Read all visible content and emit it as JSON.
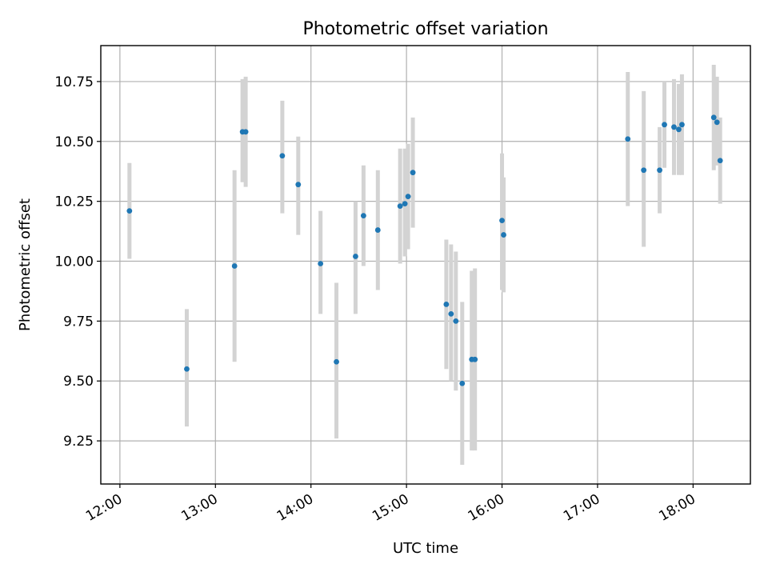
{
  "chart_data": {
    "type": "scatter",
    "title": "Photometric offset variation",
    "xlabel": "UTC time",
    "ylabel": "Photometric offset",
    "xlim": [
      "11:48",
      "18:36"
    ],
    "ylim": [
      9.07,
      10.9
    ],
    "grid": true,
    "x_ticks": [
      "12:00",
      "13:00",
      "14:00",
      "15:00",
      "16:00",
      "17:00",
      "18:00"
    ],
    "y_ticks": [
      "9.25",
      "9.50",
      "9.75",
      "10.00",
      "10.25",
      "10.50",
      "10.75"
    ],
    "colors": {
      "point": "#1f77b4",
      "errorbar": "#d3d3d3",
      "grid": "#b0b0b0"
    },
    "series": [
      {
        "points": [
          {
            "x": "12:06",
            "y": 10.21,
            "ylow": 10.01,
            "yhigh": 10.41
          },
          {
            "x": "12:42",
            "y": 9.55,
            "ylow": 9.31,
            "yhigh": 9.8
          },
          {
            "x": "13:12",
            "y": 9.98,
            "ylow": 9.58,
            "yhigh": 10.38
          },
          {
            "x": "13:17",
            "y": 10.54,
            "ylow": 10.33,
            "yhigh": 10.76
          },
          {
            "x": "13:19",
            "y": 10.54,
            "ylow": 10.31,
            "yhigh": 10.77
          },
          {
            "x": "13:42",
            "y": 10.44,
            "ylow": 10.2,
            "yhigh": 10.67
          },
          {
            "x": "13:52",
            "y": 10.32,
            "ylow": 10.11,
            "yhigh": 10.52
          },
          {
            "x": "14:06",
            "y": 9.99,
            "ylow": 9.78,
            "yhigh": 10.21
          },
          {
            "x": "14:16",
            "y": 9.58,
            "ylow": 9.26,
            "yhigh": 9.91
          },
          {
            "x": "14:28",
            "y": 10.02,
            "ylow": 9.78,
            "yhigh": 10.25
          },
          {
            "x": "14:33",
            "y": 10.19,
            "ylow": 9.98,
            "yhigh": 10.4
          },
          {
            "x": "14:42",
            "y": 10.13,
            "ylow": 9.88,
            "yhigh": 10.38
          },
          {
            "x": "14:56",
            "y": 10.23,
            "ylow": 9.99,
            "yhigh": 10.47
          },
          {
            "x": "14:59",
            "y": 10.24,
            "ylow": 10.02,
            "yhigh": 10.47
          },
          {
            "x": "15:01",
            "y": 10.27,
            "ylow": 10.05,
            "yhigh": 10.49
          },
          {
            "x": "15:04",
            "y": 10.37,
            "ylow": 10.14,
            "yhigh": 10.6
          },
          {
            "x": "15:25",
            "y": 9.82,
            "ylow": 9.55,
            "yhigh": 10.09
          },
          {
            "x": "15:28",
            "y": 9.78,
            "ylow": 9.5,
            "yhigh": 10.07
          },
          {
            "x": "15:31",
            "y": 9.75,
            "ylow": 9.46,
            "yhigh": 10.04
          },
          {
            "x": "15:35",
            "y": 9.49,
            "ylow": 9.15,
            "yhigh": 9.83
          },
          {
            "x": "15:41",
            "y": 9.59,
            "ylow": 9.21,
            "yhigh": 9.96
          },
          {
            "x": "15:43",
            "y": 9.59,
            "ylow": 9.21,
            "yhigh": 9.97
          },
          {
            "x": "16:00",
            "y": 10.17,
            "ylow": 9.88,
            "yhigh": 10.45
          },
          {
            "x": "16:01",
            "y": 10.11,
            "ylow": 9.87,
            "yhigh": 10.35
          },
          {
            "x": "17:19",
            "y": 10.51,
            "ylow": 10.23,
            "yhigh": 10.79
          },
          {
            "x": "17:29",
            "y": 10.38,
            "ylow": 10.06,
            "yhigh": 10.71
          },
          {
            "x": "17:39",
            "y": 10.38,
            "ylow": 10.2,
            "yhigh": 10.56
          },
          {
            "x": "17:42",
            "y": 10.57,
            "ylow": 10.39,
            "yhigh": 10.75
          },
          {
            "x": "17:48",
            "y": 10.56,
            "ylow": 10.36,
            "yhigh": 10.76
          },
          {
            "x": "17:51",
            "y": 10.55,
            "ylow": 10.36,
            "yhigh": 10.74
          },
          {
            "x": "17:53",
            "y": 10.57,
            "ylow": 10.36,
            "yhigh": 10.78
          },
          {
            "x": "18:13",
            "y": 10.6,
            "ylow": 10.38,
            "yhigh": 10.82
          },
          {
            "x": "18:15",
            "y": 10.58,
            "ylow": 10.4,
            "yhigh": 10.77
          },
          {
            "x": "18:17",
            "y": 10.42,
            "ylow": 10.24,
            "yhigh": 10.6
          }
        ]
      }
    ]
  }
}
